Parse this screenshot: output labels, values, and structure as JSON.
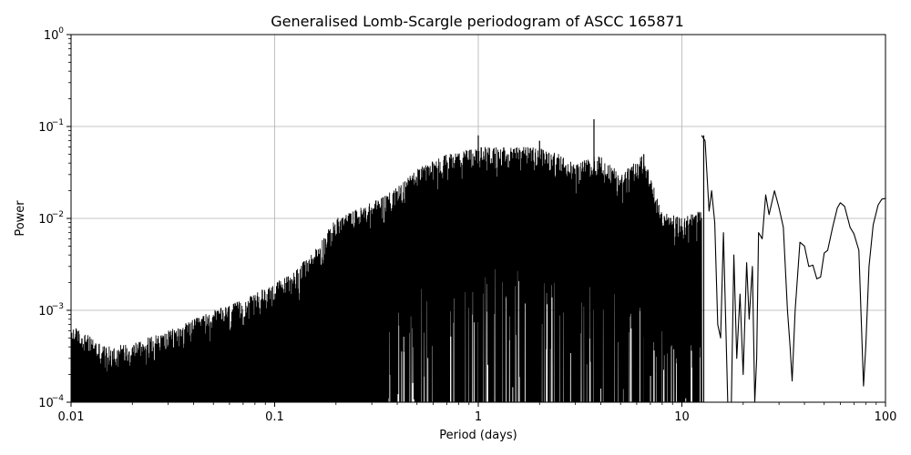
{
  "chart_data": {
    "type": "line",
    "title": "Generalised Lomb-Scargle periodogram of ASCC 165871",
    "xlabel": "Period (days)",
    "ylabel": "Power",
    "xscale": "log",
    "yscale": "log",
    "xlim": [
      0.01,
      100
    ],
    "ylim": [
      0.0001,
      1
    ],
    "grid": true,
    "x_ticks": [
      {
        "value": 0.01,
        "label": "0.01"
      },
      {
        "value": 0.1,
        "label": "0.1"
      },
      {
        "value": 1,
        "label": "1"
      },
      {
        "value": 10,
        "label": "10"
      },
      {
        "value": 100,
        "label": "100"
      }
    ],
    "y_ticks": [
      {
        "value": 0.0001,
        "base": "10",
        "exp": "−4"
      },
      {
        "value": 0.001,
        "base": "10",
        "exp": "−3"
      },
      {
        "value": 0.01,
        "base": "10",
        "exp": "−2"
      },
      {
        "value": 0.1,
        "base": "10",
        "exp": "−1"
      },
      {
        "value": 1,
        "base": "10",
        "exp": "0"
      }
    ],
    "line_color": "#000000",
    "envelope": [
      [
        0.01,
        0.0007
      ],
      [
        0.015,
        0.0004
      ],
      [
        0.02,
        0.00045
      ],
      [
        0.03,
        0.0006
      ],
      [
        0.05,
        0.001
      ],
      [
        0.07,
        0.0013
      ],
      [
        0.1,
        0.002
      ],
      [
        0.12,
        0.0025
      ],
      [
        0.15,
        0.004
      ],
      [
        0.2,
        0.01
      ],
      [
        0.3,
        0.015
      ],
      [
        0.4,
        0.022
      ],
      [
        0.5,
        0.035
      ],
      [
        0.7,
        0.05
      ],
      [
        1,
        0.06
      ],
      [
        1.5,
        0.06
      ],
      [
        2,
        0.06
      ],
      [
        2.5,
        0.05
      ],
      [
        3,
        0.04
      ],
      [
        4,
        0.05
      ],
      [
        5,
        0.03
      ],
      [
        6.5,
        0.05
      ],
      [
        8,
        0.012
      ],
      [
        10,
        0.01
      ],
      [
        12,
        0.012
      ]
    ],
    "peaks": [
      {
        "period": 3.7,
        "power": 0.12
      },
      {
        "period": 6.5,
        "power": 0.05
      },
      {
        "period": 12.8,
        "power": 0.08
      },
      {
        "period": 2.0,
        "power": 0.07
      },
      {
        "period": 1.0,
        "power": 0.08
      }
    ],
    "smooth_tail": [
      [
        12.5,
        0.08
      ],
      [
        13.0,
        0.07
      ],
      [
        13.6,
        0.012
      ],
      [
        14.0,
        0.02
      ],
      [
        14.5,
        0.009
      ],
      [
        15.0,
        0.0007
      ],
      [
        15.5,
        0.0005
      ],
      [
        16.0,
        0.007
      ],
      [
        16.8,
        0.0001
      ],
      [
        17.5,
        0.0001
      ],
      [
        18.0,
        0.004
      ],
      [
        18.6,
        0.0003
      ],
      [
        19.3,
        0.0015
      ],
      [
        20.0,
        0.0002
      ],
      [
        20.8,
        0.0033
      ],
      [
        21.4,
        0.0008
      ],
      [
        22.2,
        0.003
      ],
      [
        22.8,
        0.0001
      ],
      [
        23.3,
        0.0003
      ],
      [
        23.8,
        0.007
      ],
      [
        24.8,
        0.006
      ],
      [
        25.8,
        0.018
      ],
      [
        26.8,
        0.011
      ],
      [
        28.5,
        0.02
      ],
      [
        30.0,
        0.013
      ],
      [
        31.5,
        0.008
      ],
      [
        33.0,
        0.001
      ],
      [
        34.0,
        0.0004
      ],
      [
        34.8,
        0.00017
      ],
      [
        36.0,
        0.001
      ],
      [
        38.0,
        0.0055
      ],
      [
        40.0,
        0.005
      ],
      [
        42.0,
        0.003
      ],
      [
        44.0,
        0.0031
      ],
      [
        46.0,
        0.0022
      ],
      [
        48.0,
        0.0023
      ],
      [
        50.0,
        0.0042
      ],
      [
        52.0,
        0.0045
      ],
      [
        55.0,
        0.008
      ],
      [
        58.0,
        0.013
      ],
      [
        60.0,
        0.0148
      ],
      [
        63.0,
        0.0135
      ],
      [
        67.0,
        0.008
      ],
      [
        70.0,
        0.0068
      ],
      [
        74.0,
        0.0045
      ],
      [
        78.0,
        0.00015
      ],
      [
        80.0,
        0.0004
      ],
      [
        83.0,
        0.003
      ],
      [
        87.0,
        0.0085
      ],
      [
        92.0,
        0.014
      ],
      [
        96.0,
        0.0162
      ],
      [
        100.0,
        0.0165
      ]
    ]
  }
}
